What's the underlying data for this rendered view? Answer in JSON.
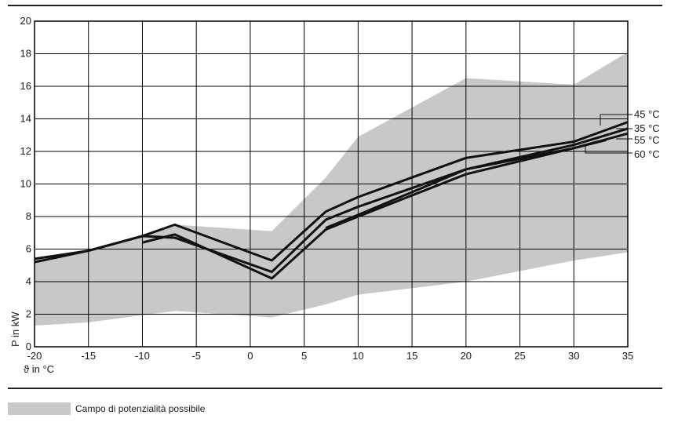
{
  "chart_data": {
    "type": "line",
    "xlabel": "ϑ in °C",
    "ylabel": "P in kW",
    "xlim": [
      -20,
      35
    ],
    "ylim": [
      0,
      20
    ],
    "x_ticks": [
      -20,
      -15,
      -10,
      -5,
      0,
      5,
      10,
      15,
      20,
      25,
      30,
      35
    ],
    "y_ticks": [
      0,
      2,
      4,
      6,
      8,
      10,
      12,
      14,
      16,
      18,
      20
    ],
    "grid": true,
    "band": {
      "label": "Campo di potenzialità possibile",
      "color": "#c8c8c8",
      "upper": [
        [
          -20,
          5.5
        ],
        [
          -15,
          5.9
        ],
        [
          -7,
          7.5
        ],
        [
          2,
          7.1
        ],
        [
          7,
          10.4
        ],
        [
          10,
          12.9
        ],
        [
          20,
          16.5
        ],
        [
          30,
          16.1
        ],
        [
          35,
          18.1
        ]
      ],
      "lower": [
        [
          -20,
          1.3
        ],
        [
          -15,
          1.5
        ],
        [
          -7,
          2.2
        ],
        [
          2,
          1.8
        ],
        [
          7,
          2.6
        ],
        [
          10,
          3.2
        ],
        [
          20,
          4.0
        ],
        [
          30,
          5.3
        ],
        [
          35,
          5.8
        ]
      ]
    },
    "series": [
      {
        "name": "45 °C",
        "x": [
          -20,
          -15,
          -10,
          -7,
          2,
          7,
          10,
          20,
          30,
          35
        ],
        "values": [
          5.4,
          5.9,
          6.8,
          7.5,
          5.3,
          8.3,
          9.2,
          11.6,
          12.6,
          13.8
        ]
      },
      {
        "name": "35 °C",
        "x": [
          -20,
          -15,
          -10,
          -7,
          2,
          7,
          10,
          20,
          30,
          35
        ],
        "values": [
          5.2,
          5.9,
          6.8,
          6.7,
          4.6,
          7.8,
          8.6,
          10.9,
          12.4,
          13.4
        ]
      },
      {
        "name": "55 °C",
        "x": [
          -10,
          -7,
          2,
          7,
          10,
          20,
          30,
          35
        ],
        "values": [
          6.4,
          6.9,
          4.2,
          7.2,
          8.0,
          10.6,
          12.2,
          13.1
        ]
      },
      {
        "name": "60 °C",
        "x": [
          7,
          10,
          20,
          30,
          33
        ],
        "values": [
          7.3,
          8.1,
          10.9,
          12.2,
          12.7
        ]
      }
    ],
    "label_order": [
      "45 °C",
      "35 °C",
      "55 °C",
      "60 °C"
    ]
  },
  "colors": {
    "band": "#c8c8c8",
    "line": "#111111",
    "grid": "#000000"
  }
}
